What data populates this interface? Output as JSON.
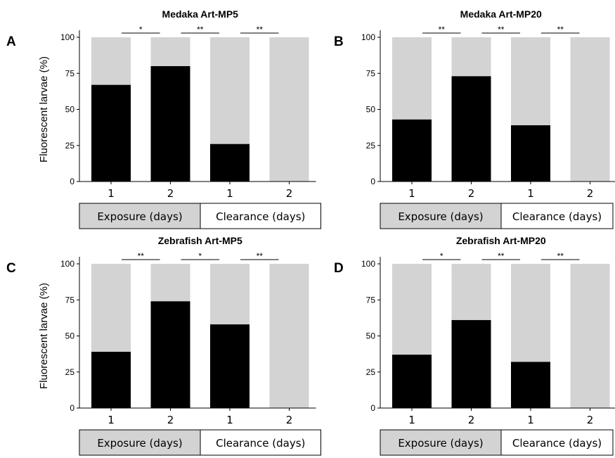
{
  "colors": {
    "background_bar": "#d3d3d3",
    "value_bar": "#000000",
    "exposure_box": "#d3d3d3",
    "clearance_box": "#ffffff"
  },
  "ylabel": "Fluorescent larvae (%)",
  "groups": {
    "exposure": "Exposure (days)",
    "clearance": "Clearance (days)"
  },
  "chart_data": [
    {
      "type": "bar",
      "panel": "A",
      "title": "Medaka Art-MP5",
      "categories": [
        "1",
        "2",
        "1",
        "2"
      ],
      "values": [
        67,
        80,
        26,
        0
      ],
      "ylim": [
        0,
        100
      ],
      "yticks": [
        0,
        25,
        50,
        75,
        100
      ],
      "significance": [
        "*",
        "**",
        "**"
      ]
    },
    {
      "type": "bar",
      "panel": "B",
      "title": "Medaka Art-MP20",
      "categories": [
        "1",
        "2",
        "1",
        "2"
      ],
      "values": [
        43,
        73,
        39,
        0
      ],
      "ylim": [
        0,
        100
      ],
      "yticks": [
        0,
        25,
        50,
        75,
        100
      ],
      "significance": [
        "**",
        "**",
        "**"
      ]
    },
    {
      "type": "bar",
      "panel": "C",
      "title": "Zebrafish Art-MP5",
      "categories": [
        "1",
        "2",
        "1",
        "2"
      ],
      "values": [
        39,
        74,
        58,
        0
      ],
      "ylim": [
        0,
        100
      ],
      "yticks": [
        0,
        25,
        50,
        75,
        100
      ],
      "significance": [
        "**",
        "*",
        "**"
      ]
    },
    {
      "type": "bar",
      "panel": "D",
      "title": "Zebrafish Art-MP20",
      "categories": [
        "1",
        "2",
        "1",
        "2"
      ],
      "values": [
        37,
        61,
        32,
        0
      ],
      "ylim": [
        0,
        100
      ],
      "yticks": [
        0,
        25,
        50,
        75,
        100
      ],
      "significance": [
        "*",
        "**",
        "**"
      ]
    }
  ]
}
